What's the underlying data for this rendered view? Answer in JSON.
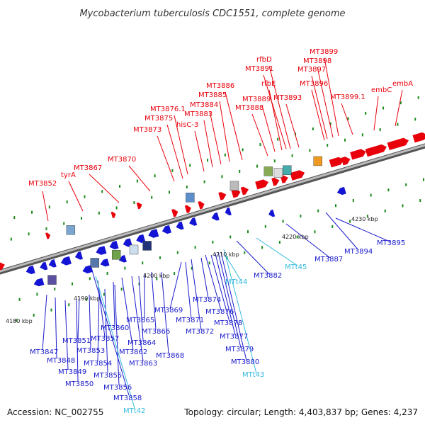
{
  "title": "Mycobacterium tuberculosis CDC1551, complete genome",
  "accession": "Accession: NC_002755",
  "topology": "Topology: circular; Length: 4,403,837 bp; Genes: 4,237",
  "colors": {
    "forward": "#e8000a",
    "reverse": "#1414d4",
    "trna": "#33bbdd",
    "backbone": "#888888",
    "tick": "#1a8a1a"
  },
  "kbp_labels": [
    "4180 kbp",
    "4190 kbp",
    "4200 kbp",
    "4210 kbp",
    "4220 kbp",
    "4230 kbp"
  ],
  "upper_labels": [
    {
      "text": "MT3852",
      "color": "red"
    },
    {
      "text": "tyrA",
      "color": "red"
    },
    {
      "text": "MT3867",
      "color": "red"
    },
    {
      "text": "MT3870",
      "color": "red"
    },
    {
      "text": "MT3873",
      "color": "red"
    },
    {
      "text": "MT3875",
      "color": "red"
    },
    {
      "text": "MT3876.1",
      "color": "red"
    },
    {
      "text": "hisC-3",
      "color": "red"
    },
    {
      "text": "MT3883",
      "color": "red"
    },
    {
      "text": "MT3884",
      "color": "red"
    },
    {
      "text": "MT3885",
      "color": "red"
    },
    {
      "text": "MT3886",
      "color": "red"
    },
    {
      "text": "MT3888",
      "color": "red"
    },
    {
      "text": "MT3889",
      "color": "red"
    },
    {
      "text": "rfbE",
      "color": "red"
    },
    {
      "text": "MT3891",
      "color": "red"
    },
    {
      "text": "rfbD",
      "color": "red"
    },
    {
      "text": "MT3893",
      "color": "red"
    },
    {
      "text": "MT3896",
      "color": "red"
    },
    {
      "text": "MT3897",
      "color": "red"
    },
    {
      "text": "MT3898",
      "color": "red"
    },
    {
      "text": "MT3899",
      "color": "red"
    },
    {
      "text": "MT3899.1",
      "color": "red"
    },
    {
      "text": "embC",
      "color": "red"
    },
    {
      "text": "embA",
      "color": "red"
    }
  ],
  "lower_labels": [
    {
      "text": "MT3847",
      "color": "blue"
    },
    {
      "text": "MT3848",
      "color": "blue"
    },
    {
      "text": "MT3849",
      "color": "blue"
    },
    {
      "text": "MT3850",
      "color": "blue"
    },
    {
      "text": "MT3851",
      "color": "blue"
    },
    {
      "text": "MT3853",
      "color": "blue"
    },
    {
      "text": "MT3854",
      "color": "blue"
    },
    {
      "text": "MT3855",
      "color": "blue"
    },
    {
      "text": "MT3856",
      "color": "blue"
    },
    {
      "text": "MT3857",
      "color": "blue"
    },
    {
      "text": "MT3858",
      "color": "blue"
    },
    {
      "text": "MTt42",
      "color": "cyan"
    },
    {
      "text": "MT3860",
      "color": "blue"
    },
    {
      "text": "MT3862",
      "color": "blue"
    },
    {
      "text": "MT3863",
      "color": "blue"
    },
    {
      "text": "MT3864",
      "color": "blue"
    },
    {
      "text": "MT3865",
      "color": "blue"
    },
    {
      "text": "MT3866",
      "color": "blue"
    },
    {
      "text": "MT3868",
      "color": "blue"
    },
    {
      "text": "MT3869",
      "color": "blue"
    },
    {
      "text": "MT3871",
      "color": "blue"
    },
    {
      "text": "MT3872",
      "color": "blue"
    },
    {
      "text": "MT3874",
      "color": "blue"
    },
    {
      "text": "MT3876",
      "color": "blue"
    },
    {
      "text": "MT3878",
      "color": "blue"
    },
    {
      "text": "MT3877",
      "color": "blue"
    },
    {
      "text": "MT3879",
      "color": "blue"
    },
    {
      "text": "MT3880",
      "color": "blue"
    },
    {
      "text": "MTt43",
      "color": "cyan"
    },
    {
      "text": "MTt44",
      "color": "cyan"
    },
    {
      "text": "MT3882",
      "color": "blue"
    },
    {
      "text": "MTt45",
      "color": "cyan"
    },
    {
      "text": "MT3887",
      "color": "blue"
    },
    {
      "text": "MT3894",
      "color": "blue"
    },
    {
      "text": "MT3895",
      "color": "blue"
    }
  ]
}
